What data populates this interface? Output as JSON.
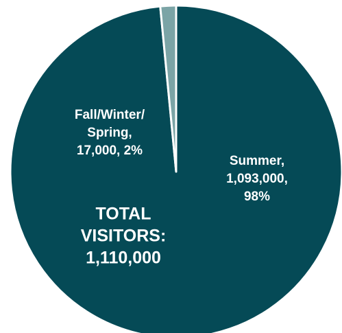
{
  "chart_data": {
    "type": "pie",
    "values": [
      1093000,
      17000
    ],
    "colors": [
      "#054a56",
      "#7ba4a6"
    ],
    "data_labels": [
      [
        "Summer,",
        "1,093,000,",
        "98%"
      ],
      [
        "Fall/Winter/",
        "Spring,",
        "17,000, 2%"
      ]
    ],
    "annotation": [
      "TOTAL",
      "VISITORS:",
      "1,110,000"
    ]
  }
}
